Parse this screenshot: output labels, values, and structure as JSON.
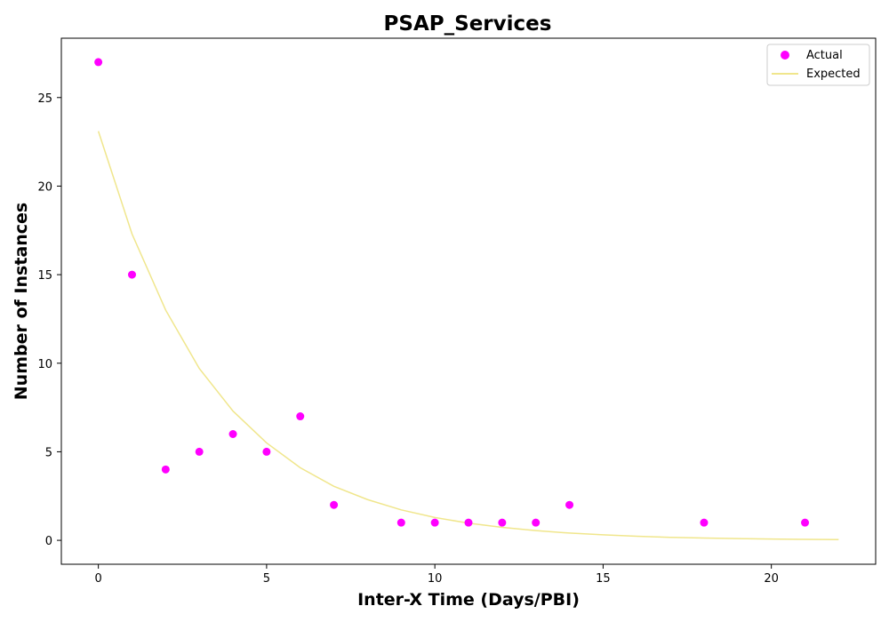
{
  "chart_data": {
    "type": "scatter",
    "title": "PSAP_Services",
    "xlabel": "Inter-X Time (Days/PBI)",
    "ylabel": "Number of Instances",
    "xlim": [
      -1.1,
      23.1
    ],
    "ylim": [
      -1.35,
      28.35
    ],
    "xticks": [
      0,
      5,
      10,
      15,
      20
    ],
    "yticks": [
      0,
      5,
      10,
      15,
      20,
      25
    ],
    "grid": false,
    "legend_position": "top-right",
    "series": [
      {
        "name": "Actual",
        "kind": "scatter",
        "color": "#ff00ff",
        "x": [
          0,
          1,
          2,
          3,
          4,
          5,
          6,
          7,
          9,
          10,
          11,
          12,
          13,
          14,
          18,
          21
        ],
        "y": [
          27,
          15,
          4,
          5,
          6,
          5,
          7,
          2,
          1,
          1,
          1,
          1,
          1,
          2,
          1,
          1
        ]
      },
      {
        "name": "Expected",
        "kind": "line",
        "color": "#f0e68c",
        "x": [
          0,
          1,
          2,
          3,
          4,
          5,
          6,
          7,
          8,
          9,
          10,
          11,
          12,
          13,
          14,
          15,
          16,
          17,
          18,
          19,
          20,
          21,
          22
        ],
        "y": [
          23.1,
          17.3,
          13.0,
          9.7,
          7.3,
          5.5,
          4.1,
          3.05,
          2.3,
          1.72,
          1.29,
          0.97,
          0.73,
          0.55,
          0.41,
          0.31,
          0.23,
          0.17,
          0.13,
          0.1,
          0.073,
          0.055,
          0.041
        ]
      }
    ]
  }
}
